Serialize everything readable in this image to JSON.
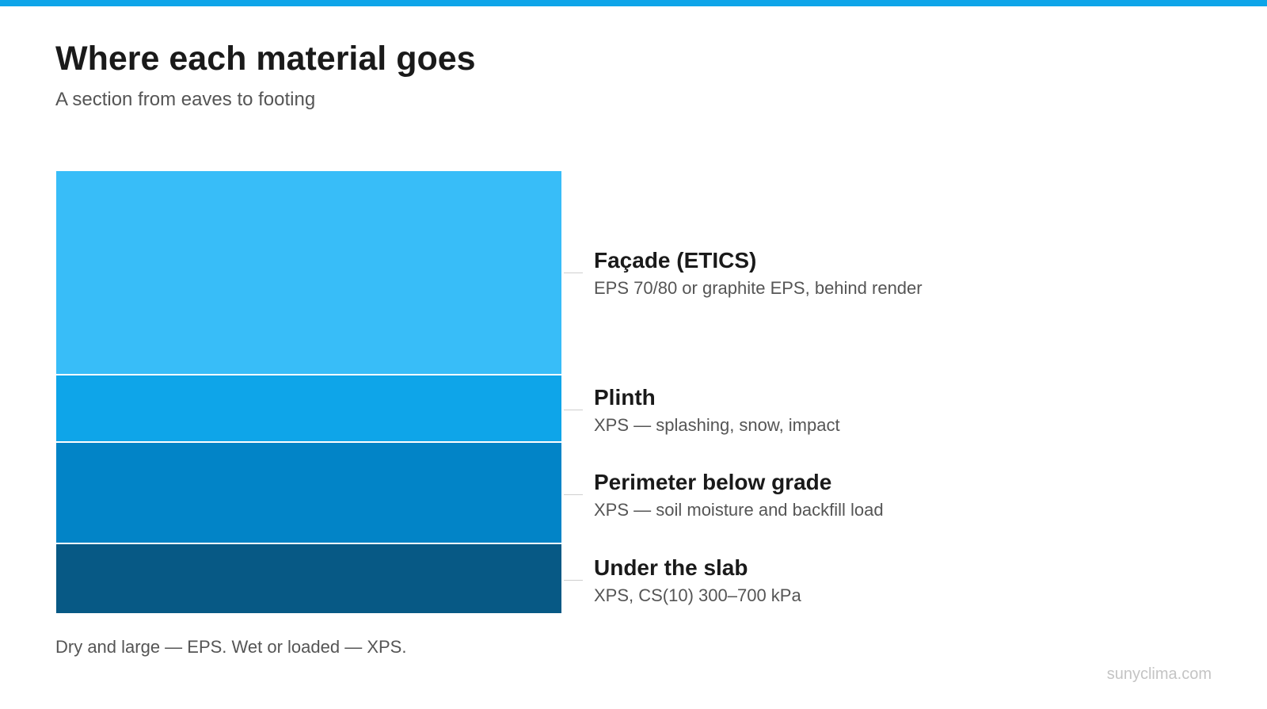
{
  "header": {
    "title": "Where each material goes",
    "subtitle": "A section from eaves to footing"
  },
  "colors": {
    "accent": "#0ea5e9"
  },
  "layers": [
    {
      "name": "Façade (ETICS)",
      "description": "EPS 70/80 or graphite EPS, behind render",
      "color": "#38bdf8"
    },
    {
      "name": "Plinth",
      "description": "XPS — splashing, snow, impact",
      "color": "#0ea5e9"
    },
    {
      "name": "Perimeter below grade",
      "description": "XPS — soil moisture and backfill load",
      "color": "#0284c7"
    },
    {
      "name": "Under the slab",
      "description": "XPS, CS(10) 300–700 kPa",
      "color": "#075985"
    }
  ],
  "footer": {
    "note": "Dry and large — EPS. Wet or loaded — XPS.",
    "credit": "sunyclima.com"
  }
}
